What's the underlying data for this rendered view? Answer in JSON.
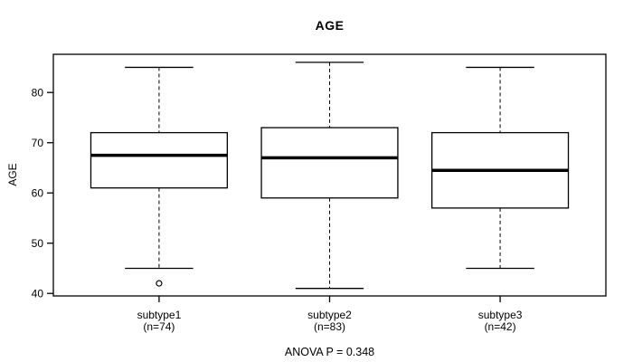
{
  "chart_data": {
    "type": "boxplot",
    "title": "AGE",
    "ylabel": "AGE",
    "xlabel": "",
    "annotation": "ANOVA P = 0.348",
    "yticks": [
      40,
      50,
      60,
      70,
      80
    ],
    "ylim": [
      39.5,
      87.6
    ],
    "xlim": [
      0.38,
      3.62
    ],
    "grid": false,
    "box_width": 0.8,
    "whisker_cap_width": 0.4,
    "groups": [
      {
        "label": "subtype1",
        "n_label": "(n=74)",
        "n": 74,
        "position": 1,
        "whisker_low": 45,
        "q1": 61,
        "median": 67.5,
        "q3": 72,
        "whisker_high": 85,
        "outliers": [
          42
        ]
      },
      {
        "label": "subtype2",
        "n_label": "(n=83)",
        "n": 83,
        "position": 2,
        "whisker_low": 41,
        "q1": 59,
        "median": 67,
        "q3": 73,
        "whisker_high": 86,
        "outliers": []
      },
      {
        "label": "subtype3",
        "n_label": "(n=42)",
        "n": 42,
        "position": 3,
        "whisker_low": 45,
        "q1": 57,
        "median": 64.5,
        "q3": 72,
        "whisker_high": 85,
        "outliers": []
      }
    ],
    "colors": {
      "line": "#000000",
      "box_fill": "#ffffff",
      "background": "#ffffff"
    }
  }
}
